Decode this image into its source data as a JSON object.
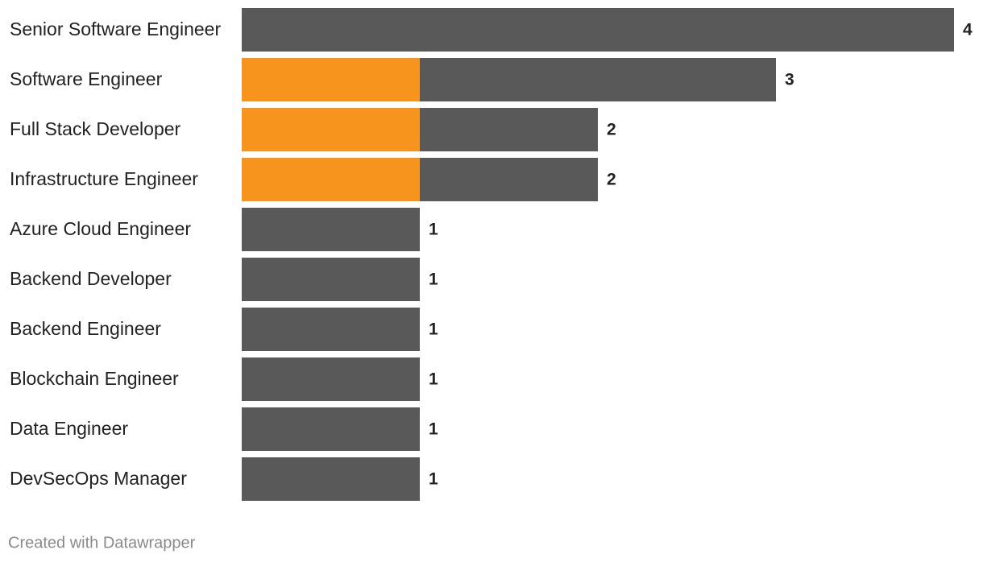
{
  "chart_data": {
    "type": "stacked-bar-horizontal",
    "categories": [
      "Senior Software Engineer",
      "Software Engineer",
      "Full Stack Developer",
      "Infrastructure Engineer",
      "Azure Cloud Engineer",
      "Backend Developer",
      "Backend Engineer",
      "Blockchain Engineer",
      "Data Engineer",
      "DevSecOps Manager"
    ],
    "series": [
      {
        "color": "#f7941d",
        "values": [
          0,
          1,
          1,
          1,
          0,
          0,
          0,
          0,
          0,
          0
        ]
      },
      {
        "color": "#595959",
        "values": [
          4,
          2,
          1,
          1,
          1,
          1,
          1,
          1,
          1,
          1
        ]
      }
    ],
    "totals": [
      4,
      3,
      2,
      2,
      1,
      1,
      1,
      1,
      1,
      1
    ],
    "xlim": [
      0,
      4
    ],
    "footer": "Created with Datawrapper"
  }
}
